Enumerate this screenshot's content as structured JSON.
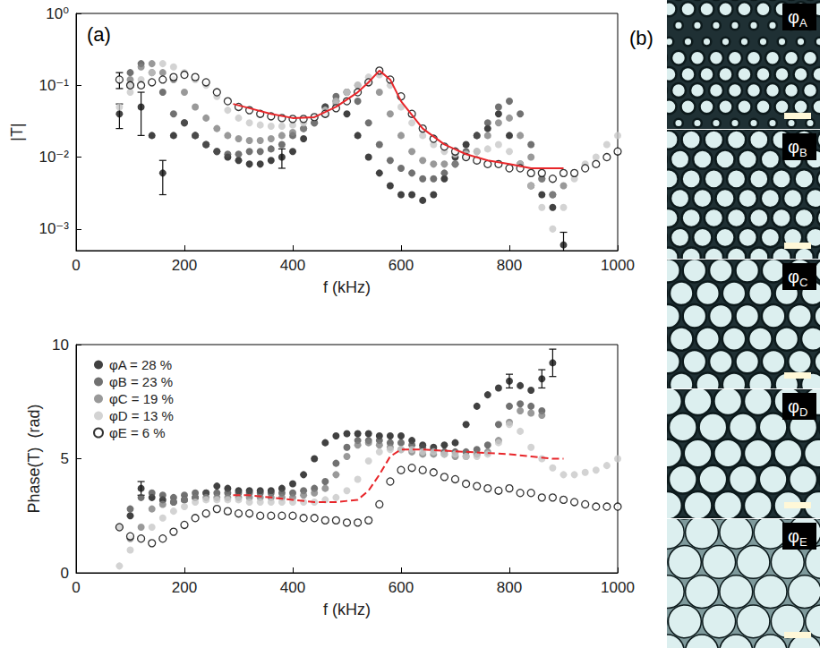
{
  "chart_data": [
    {
      "type": "scatter",
      "label": "(a)",
      "x_label": "f (kHz)",
      "y_label": "|T|",
      "log": "y",
      "grid": false,
      "xlim": [
        0,
        1000
      ],
      "xticks": [
        0,
        200,
        400,
        600,
        800,
        1000
      ],
      "ylim": [
        0.0005,
        1
      ],
      "yticks": [
        {
          "value": 0.001,
          "label": "10⁻³"
        },
        {
          "value": 0.01,
          "label": "10⁻²"
        },
        {
          "value": 0.1,
          "label": "10⁻¹"
        },
        {
          "value": 1,
          "label": "10⁰"
        }
      ],
      "x": [
        80,
        100,
        120,
        140,
        160,
        180,
        200,
        220,
        240,
        260,
        280,
        300,
        320,
        340,
        360,
        380,
        400,
        420,
        440,
        460,
        480,
        500,
        520,
        540,
        560,
        580,
        600,
        620,
        640,
        660,
        680,
        700,
        720,
        740,
        760,
        780,
        800,
        820,
        840,
        860,
        880,
        900,
        920,
        940,
        960,
        980,
        1000
      ],
      "series": [
        {
          "color": "#111111",
          "marker": "circle",
          "values": [
            0.04,
            0.1,
            0.05,
            0.02,
            0.006,
            0.02,
            0.03,
            0.02,
            0.015,
            0.012,
            0.01,
            0.009,
            0.008,
            0.008,
            0.009,
            0.01,
            0.012,
            0.018,
            0.03,
            0.05,
            0.06,
            0.04,
            0.02,
            0.01,
            0.006,
            0.004,
            0.003,
            0.003,
            0.0025,
            0.003,
            0.005,
            0.01,
            0.015,
            0.02,
            0.025,
            0.04,
            0.02,
            0.008,
            0.004,
            0.003,
            0.002,
            0.0006,
            null,
            null,
            null,
            null,
            null
          ],
          "errors": [
            0.015,
            null,
            0.03,
            null,
            0.003,
            null,
            null,
            null,
            null,
            null,
            null,
            null,
            null,
            null,
            null,
            0.003,
            null,
            null,
            null,
            null,
            null,
            null,
            null,
            null,
            null,
            null,
            null,
            null,
            null,
            null,
            null,
            null,
            null,
            null,
            null,
            null,
            null,
            null,
            null,
            null,
            null,
            0.0003,
            null,
            null,
            null,
            null,
            null
          ]
        },
        {
          "color": "#4d4d4d",
          "marker": "circle",
          "values": [
            null,
            0.15,
            0.2,
            0.15,
            0.08,
            0.04,
            0.03,
            0.02,
            0.015,
            0.012,
            0.011,
            0.011,
            0.012,
            0.012,
            0.013,
            0.015,
            0.02,
            0.025,
            0.035,
            0.05,
            0.07,
            0.08,
            0.06,
            0.03,
            0.015,
            0.009,
            0.007,
            0.006,
            0.005,
            0.005,
            0.006,
            0.008,
            0.012,
            0.02,
            0.03,
            0.05,
            0.06,
            0.04,
            0.015,
            0.005,
            0.003,
            null,
            null,
            null,
            null,
            null,
            null
          ]
        },
        {
          "color": "#808080",
          "marker": "circle",
          "values": [
            null,
            0.12,
            0.18,
            0.2,
            0.15,
            0.12,
            0.08,
            0.05,
            0.035,
            0.025,
            0.02,
            0.018,
            0.017,
            0.017,
            0.018,
            0.02,
            0.022,
            0.025,
            0.03,
            0.04,
            0.055,
            0.08,
            0.1,
            0.11,
            0.08,
            0.04,
            0.02,
            0.012,
            0.009,
            0.008,
            0.008,
            0.008,
            0.01,
            0.012,
            0.02,
            0.03,
            0.035,
            0.02,
            0.01,
            0.005,
            0.003,
            0.004,
            null,
            null,
            null,
            null,
            null
          ]
        },
        {
          "color": "#c8c8c8",
          "marker": "circle",
          "values": [
            0.05,
            0.08,
            0.12,
            0.15,
            0.2,
            0.18,
            0.15,
            0.12,
            0.1,
            0.07,
            0.045,
            0.035,
            0.03,
            0.028,
            0.027,
            0.027,
            0.028,
            0.03,
            0.035,
            0.045,
            0.06,
            0.08,
            0.1,
            0.13,
            0.14,
            0.1,
            0.05,
            0.03,
            0.02,
            0.015,
            0.012,
            0.011,
            0.011,
            0.012,
            0.013,
            0.015,
            0.012,
            0.008,
            0.004,
            0.002,
            0.001,
            0.002,
            0.005,
            0.008,
            0.01,
            0.015,
            0.02
          ]
        },
        {
          "color": "#000000",
          "marker": "open_circle",
          "values": [
            0.12,
            0.1,
            0.1,
            0.11,
            0.12,
            0.13,
            0.14,
            0.13,
            0.11,
            0.08,
            0.06,
            0.05,
            0.045,
            0.04,
            0.037,
            0.035,
            0.034,
            0.034,
            0.036,
            0.04,
            0.048,
            0.06,
            0.08,
            0.11,
            0.16,
            0.12,
            0.07,
            0.04,
            0.025,
            0.018,
            0.014,
            0.012,
            0.01,
            0.009,
            0.008,
            0.008,
            0.007,
            0.007,
            0.006,
            0.006,
            0.005,
            0.006,
            0.006,
            0.007,
            0.008,
            0.01,
            0.012
          ],
          "errors": [
            0.03,
            null,
            null,
            null,
            null,
            null,
            null,
            null,
            null,
            null,
            null,
            null,
            null,
            null,
            null,
            null,
            null,
            null,
            null,
            null,
            null,
            null,
            null,
            null,
            null,
            null,
            null,
            null,
            null,
            null,
            null,
            null,
            null,
            null,
            null,
            null,
            null,
            null,
            null,
            null,
            null,
            null,
            null,
            null,
            null,
            null,
            null
          ]
        },
        {
          "type": "line",
          "color": "#e8262a",
          "line_style": "solid",
          "x": [
            290,
            320,
            360,
            400,
            440,
            480,
            520,
            540,
            560,
            580,
            600,
            640,
            680,
            720,
            760,
            800,
            840,
            880,
            900
          ],
          "values": [
            0.055,
            0.048,
            0.04,
            0.035,
            0.036,
            0.05,
            0.08,
            0.11,
            0.16,
            0.12,
            0.06,
            0.025,
            0.015,
            0.011,
            0.009,
            0.008,
            0.007,
            0.007,
            0.007
          ]
        }
      ]
    },
    {
      "type": "scatter",
      "x_label": "f (kHz)",
      "y_label": "Phase(T)  (rad)",
      "grid": false,
      "legend": "upper left",
      "xlim": [
        0,
        1000
      ],
      "xticks": [
        0,
        200,
        400,
        600,
        800,
        1000
      ],
      "ylim": [
        0,
        10
      ],
      "yticks": [
        0,
        5,
        10
      ],
      "x": [
        80,
        100,
        120,
        140,
        160,
        180,
        200,
        220,
        240,
        260,
        280,
        300,
        320,
        340,
        360,
        380,
        400,
        420,
        440,
        460,
        480,
        500,
        520,
        540,
        560,
        580,
        600,
        620,
        640,
        660,
        680,
        700,
        720,
        740,
        760,
        780,
        800,
        820,
        840,
        860,
        880,
        900,
        920,
        940,
        960,
        980,
        1000
      ],
      "series": [
        {
          "name": "φA = 28 %",
          "color": "#111111",
          "marker": "circle",
          "values": [
            2.0,
            2.5,
            3.7,
            3.3,
            3.2,
            3.1,
            3.2,
            3.3,
            3.5,
            3.8,
            3.7,
            3.6,
            3.6,
            3.6,
            3.6,
            3.7,
            3.9,
            4.3,
            5.0,
            5.7,
            6.0,
            6.1,
            6.1,
            6.1,
            6.0,
            6.0,
            6.0,
            5.8,
            5.6,
            5.5,
            5.6,
            5.7,
            6.5,
            7.3,
            7.8,
            8.1,
            8.4,
            8.2,
            8.0,
            8.5,
            9.2,
            null,
            null,
            null,
            null,
            null,
            null
          ],
          "errors": [
            null,
            null,
            0.3,
            null,
            null,
            null,
            null,
            null,
            null,
            null,
            null,
            null,
            null,
            null,
            null,
            null,
            null,
            null,
            null,
            null,
            null,
            null,
            null,
            null,
            null,
            null,
            null,
            null,
            null,
            null,
            null,
            null,
            null,
            null,
            null,
            null,
            0.3,
            null,
            null,
            0.4,
            0.6,
            null,
            null,
            null,
            null,
            null,
            null
          ]
        },
        {
          "name": "φB = 23 %",
          "color": "#4d4d4d",
          "marker": "circle",
          "values": [
            null,
            2.8,
            3.3,
            3.5,
            3.4,
            3.3,
            3.4,
            3.5,
            3.5,
            3.5,
            3.5,
            3.5,
            3.5,
            3.5,
            3.5,
            3.5,
            3.5,
            3.6,
            3.7,
            4.0,
            4.8,
            5.5,
            5.8,
            5.8,
            5.8,
            5.7,
            5.7,
            5.6,
            5.5,
            5.4,
            5.3,
            5.3,
            5.3,
            5.4,
            5.6,
            6.5,
            7.3,
            7.4,
            7.3,
            7.1,
            null,
            null,
            null,
            null,
            null,
            null,
            null
          ]
        },
        {
          "name": "φC = 19 %",
          "color": "#808080",
          "marker": "circle",
          "values": [
            null,
            1.5,
            2.0,
            2.8,
            3.0,
            3.1,
            3.2,
            3.3,
            3.3,
            3.3,
            3.3,
            3.3,
            3.3,
            3.3,
            3.3,
            3.3,
            3.3,
            3.4,
            3.5,
            3.7,
            4.3,
            5.1,
            5.6,
            5.7,
            5.6,
            5.5,
            5.4,
            5.3,
            5.2,
            5.2,
            5.2,
            5.1,
            5.1,
            5.2,
            5.3,
            5.8,
            6.6,
            7.1,
            7.0,
            6.9,
            null,
            null,
            null,
            null,
            null,
            null,
            null
          ]
        },
        {
          "name": "φD = 13 %",
          "color": "#c8c8c8",
          "marker": "circle",
          "values": [
            0.3,
            1.0,
            1.5,
            2.0,
            2.4,
            2.7,
            2.9,
            3.1,
            3.2,
            3.2,
            3.2,
            3.2,
            3.1,
            3.1,
            3.1,
            3.1,
            3.1,
            3.1,
            3.1,
            3.2,
            3.3,
            3.6,
            4.1,
            4.9,
            5.3,
            5.4,
            5.4,
            5.4,
            5.3,
            5.3,
            5.2,
            5.2,
            5.1,
            5.1,
            5.2,
            5.7,
            6.5,
            6.2,
            5.5,
            5.0,
            4.6,
            4.3,
            4.3,
            4.4,
            4.5,
            4.7,
            5.0
          ]
        },
        {
          "name": "φE = 6 %",
          "color": "#000000",
          "marker": "open_circle",
          "values": [
            2.0,
            1.6,
            1.5,
            1.3,
            1.5,
            1.8,
            2.1,
            2.4,
            2.6,
            2.8,
            2.7,
            2.6,
            2.6,
            2.5,
            2.5,
            2.5,
            2.5,
            2.4,
            2.4,
            2.3,
            2.3,
            2.2,
            2.2,
            2.3,
            3.0,
            4.0,
            4.5,
            4.6,
            4.5,
            4.4,
            4.2,
            4.1,
            3.9,
            3.8,
            3.7,
            3.6,
            3.7,
            3.5,
            3.5,
            3.3,
            3.3,
            3.2,
            3.1,
            3.0,
            2.9,
            2.9,
            2.9
          ]
        },
        {
          "type": "line",
          "color": "#e8262a",
          "line_style": "dashed",
          "x": [
            290,
            320,
            360,
            400,
            440,
            480,
            520,
            540,
            560,
            580,
            600,
            640,
            680,
            720,
            760,
            800,
            840,
            880,
            900
          ],
          "values": [
            3.4,
            3.4,
            3.3,
            3.2,
            3.1,
            3.1,
            3.2,
            3.6,
            4.3,
            5.1,
            5.4,
            5.4,
            5.35,
            5.3,
            5.25,
            5.2,
            5.1,
            5.0,
            5.0
          ]
        }
      ]
    }
  ],
  "panel_b": {
    "label": "(b)",
    "images": [
      "φA",
      "φB",
      "φC",
      "φD",
      "φE"
    ]
  }
}
